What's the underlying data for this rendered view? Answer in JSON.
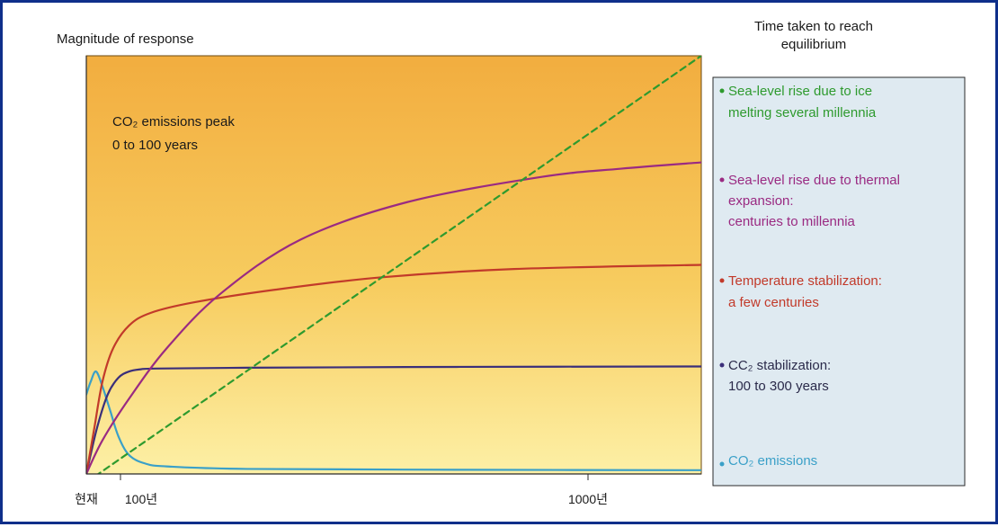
{
  "chart_data": {
    "type": "line",
    "ylabel": "Magnitude of response",
    "panel_title_line1": "Time taken to reach",
    "panel_title_line2": "equilibrium",
    "annotation_line1": "CO₂ emissions peak",
    "annotation_line2": "0 to 100 years",
    "x_ticks": [
      "현재",
      "100년",
      "1000년"
    ],
    "series": [
      {
        "name": "CO₂ emissions",
        "color": "#3aa0c8",
        "dash": false,
        "points": [
          [
            0,
            0.19
          ],
          [
            8,
            0.22
          ],
          [
            18,
            0.245
          ],
          [
            30,
            0.21
          ],
          [
            45,
            0.15
          ],
          [
            60,
            0.09
          ],
          [
            80,
            0.045
          ],
          [
            110,
            0.025
          ],
          [
            150,
            0.018
          ],
          [
            300,
            0.012
          ],
          [
            700,
            0.01
          ],
          [
            1150,
            0.009
          ]
        ]
      },
      {
        "name": "CO₂ stabilization",
        "color": "#3b2f7a",
        "dash": false,
        "points": [
          [
            0,
            0
          ],
          [
            20,
            0.11
          ],
          [
            40,
            0.19
          ],
          [
            60,
            0.23
          ],
          [
            80,
            0.245
          ],
          [
            100,
            0.25
          ],
          [
            130,
            0.252
          ],
          [
            300,
            0.254
          ],
          [
            700,
            0.256
          ],
          [
            1150,
            0.257
          ]
        ]
      },
      {
        "name": "Temperature stabilization",
        "color": "#c23a2a",
        "dash": false,
        "points": [
          [
            0,
            0
          ],
          [
            15,
            0.11
          ],
          [
            30,
            0.22
          ],
          [
            50,
            0.3
          ],
          [
            80,
            0.355
          ],
          [
            120,
            0.385
          ],
          [
            200,
            0.41
          ],
          [
            350,
            0.44
          ],
          [
            550,
            0.47
          ],
          [
            800,
            0.49
          ],
          [
            1150,
            0.5
          ]
        ]
      },
      {
        "name": "Sea-level rise due to thermal expansion",
        "color": "#9a2a82",
        "dash": false,
        "points": [
          [
            0,
            0
          ],
          [
            30,
            0.08
          ],
          [
            80,
            0.18
          ],
          [
            150,
            0.3
          ],
          [
            250,
            0.43
          ],
          [
            400,
            0.56
          ],
          [
            600,
            0.65
          ],
          [
            850,
            0.71
          ],
          [
            1000,
            0.73
          ],
          [
            1150,
            0.745
          ]
        ]
      },
      {
        "name": "Sea-level rise due to ice melting",
        "color": "#2e9a2e",
        "dash": true,
        "points": [
          [
            0,
            -0.02
          ],
          [
            1150,
            1.0
          ]
        ]
      }
    ],
    "legend": [
      {
        "line1": "Sea-level rise due to ice",
        "line2": "melting several millennia",
        "line3": "",
        "color": "#2e9a2e"
      },
      {
        "line1": "Sea-level rise due to thermal",
        "line2": "expansion:",
        "line3": "centuries to millennia",
        "color": "#9a2a82"
      },
      {
        "line1": "Temperature stabilization:",
        "line2": "a few centuries",
        "line3": "",
        "color": "#c23a2a"
      },
      {
        "line1": "CC₂ stabilization:",
        "line2": "100 to 300 years",
        "line3": "",
        "color": "#3b2f7a"
      },
      {
        "line1": "CO₂ emissions",
        "line2": "",
        "line3": "",
        "color": "#3aa0c8"
      }
    ],
    "xlim": [
      0,
      1150
    ],
    "ylim": [
      0,
      1
    ],
    "grid": false,
    "legend_placement": "right"
  }
}
